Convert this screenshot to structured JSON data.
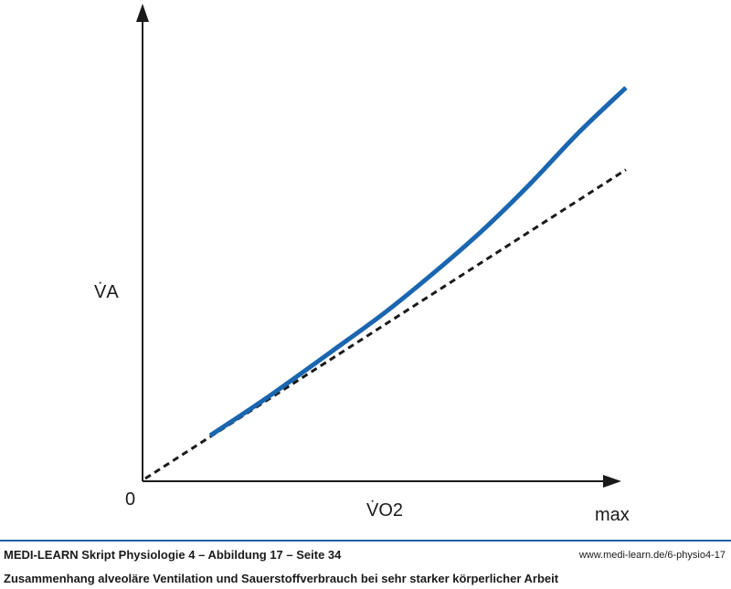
{
  "chart_data": {
    "type": "line",
    "title": "",
    "xlabel": "V̇O2",
    "ylabel": "V̇A",
    "x_tick_labels": {
      "origin": "0",
      "end": "max"
    },
    "xlim": [
      0,
      1
    ],
    "ylim": [
      0,
      1
    ],
    "grid": false,
    "legend": "none",
    "series": [
      {
        "style": "solid",
        "color": "#1a66b0",
        "x": [
          0.135,
          0.25,
          0.4,
          0.5,
          0.6,
          0.7,
          0.8,
          0.9,
          1.0
        ],
        "y": [
          0.11,
          0.204,
          0.336,
          0.426,
          0.526,
          0.633,
          0.753,
          0.883,
          1.0
        ]
      },
      {
        "style": "dashed",
        "color": "#1a1a1a",
        "x": [
          0.0,
          1.0
        ],
        "y": [
          0.0,
          0.79
        ]
      }
    ]
  },
  "footer": {
    "title": "MEDI-LEARN Skript Physiologie 4 – Abbildung 17 – Seite 34",
    "url": "www.medi-learn.de/6-physio4-17",
    "caption": "Zusammenhang alveoläre Ventilation und Sauerstoffverbrauch bei sehr starker körperlicher Arbeit"
  },
  "colors": {
    "curve": "#1a66b0",
    "footer_rule": "#1f5fa8",
    "axis": "#1a1a1a"
  }
}
